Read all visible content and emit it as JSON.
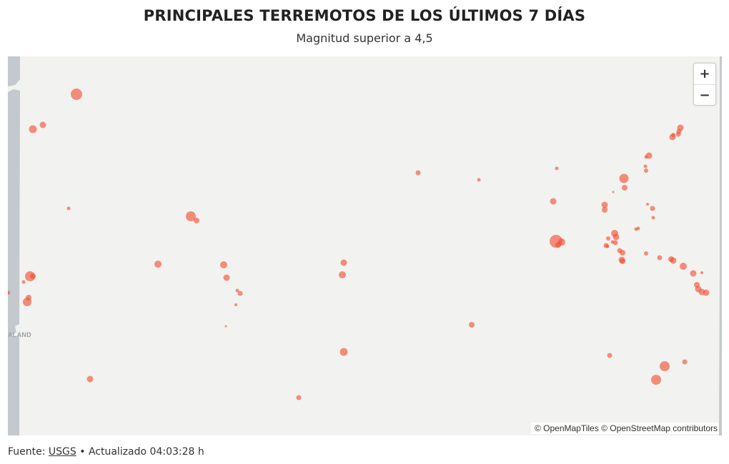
{
  "header": {
    "title": "PRINCIPALES TERREMOTOS DE LOS ÚLTIMOS 7 DÍAS",
    "subtitle": "Magnitud superior a 4,5"
  },
  "map": {
    "zoom_in_label": "+",
    "zoom_out_label": "−",
    "attribution": "© OpenMapTiles © OpenStreetMap contributors",
    "place_label": "ALAND",
    "quake_color": "#f04e30",
    "land_color": "#c3c9cc",
    "water_color": "#f2f2f0"
  },
  "footer": {
    "source_prefix": "Fuente:",
    "source_link": "USGS",
    "updated": "• Actualizado 04:03:28 h"
  }
}
